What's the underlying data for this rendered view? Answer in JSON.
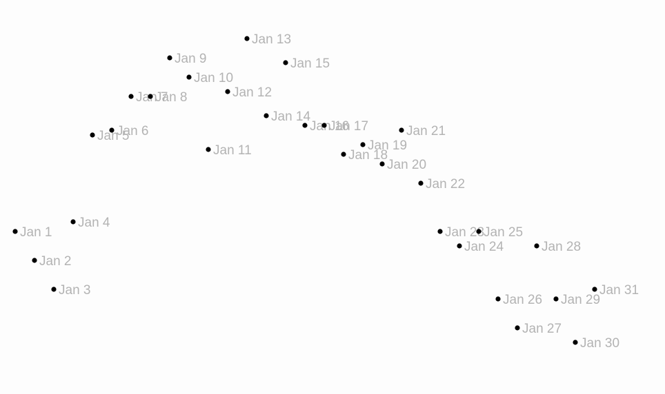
{
  "chart_data": {
    "type": "scatter",
    "title": "",
    "xlabel": "",
    "ylabel": "",
    "grid": false,
    "legend": "none",
    "xlim": [
      0,
      31
    ],
    "ylim": [
      0,
      45
    ],
    "point_color": "#000000",
    "label_color": "#b3b3b3",
    "points": [
      {
        "label": "Jan 1",
        "x": 1,
        "y": 21
      },
      {
        "label": "Jan 2",
        "x": 2,
        "y": 18
      },
      {
        "label": "Jan 3",
        "x": 3,
        "y": 15
      },
      {
        "label": "Jan 4",
        "x": 4,
        "y": 22
      },
      {
        "label": "Jan 5",
        "x": 5,
        "y": 31
      },
      {
        "label": "Jan 6",
        "x": 6,
        "y": 31.5
      },
      {
        "label": "Jan 7",
        "x": 7,
        "y": 35
      },
      {
        "label": "Jan 8",
        "x": 8,
        "y": 35
      },
      {
        "label": "Jan 9",
        "x": 9,
        "y": 39
      },
      {
        "label": "Jan 10",
        "x": 10,
        "y": 37
      },
      {
        "label": "Jan 11",
        "x": 11,
        "y": 29.5
      },
      {
        "label": "Jan 12",
        "x": 12,
        "y": 35.5
      },
      {
        "label": "Jan 13",
        "x": 13,
        "y": 41
      },
      {
        "label": "Jan 14",
        "x": 14,
        "y": 33
      },
      {
        "label": "Jan 15",
        "x": 15,
        "y": 38.5
      },
      {
        "label": "Jan 16",
        "x": 16,
        "y": 32
      },
      {
        "label": "Jan 17",
        "x": 17,
        "y": 32
      },
      {
        "label": "Jan 18",
        "x": 18,
        "y": 29
      },
      {
        "label": "Jan 19",
        "x": 19,
        "y": 30
      },
      {
        "label": "Jan 20",
        "x": 20,
        "y": 28
      },
      {
        "label": "Jan 21",
        "x": 21,
        "y": 31.5
      },
      {
        "label": "Jan 22",
        "x": 22,
        "y": 26
      },
      {
        "label": "Jan 23",
        "x": 23,
        "y": 21
      },
      {
        "label": "Jan 24",
        "x": 24,
        "y": 19.5
      },
      {
        "label": "Jan 25",
        "x": 25,
        "y": 21
      },
      {
        "label": "Jan 26",
        "x": 26,
        "y": 14
      },
      {
        "label": "Jan 27",
        "x": 27,
        "y": 11
      },
      {
        "label": "Jan 28",
        "x": 28,
        "y": 19.5
      },
      {
        "label": "Jan 29",
        "x": 29,
        "y": 14
      },
      {
        "label": "Jan 30",
        "x": 30,
        "y": 9.5
      },
      {
        "label": "Jan 31",
        "x": 31,
        "y": 15
      }
    ]
  }
}
